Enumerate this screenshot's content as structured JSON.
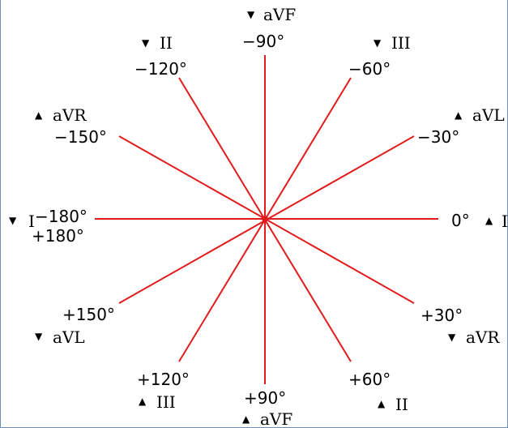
{
  "colors": {
    "axis_line": "#e11b1b",
    "center_dot": "#e11b1b",
    "text": "#000000",
    "frame": "#6f8fb6"
  },
  "angles": {
    "deg_0": "0°",
    "deg_neg30": "−30°",
    "deg_neg60": "−60°",
    "deg_neg90": "−90°",
    "deg_neg120": "−120°",
    "deg_neg150": "−150°",
    "deg_neg180": "−180°",
    "deg_pos180": "+180°",
    "deg_pos150": "+150°",
    "deg_pos120": "+120°",
    "deg_pos90": "+90°",
    "deg_pos60": "+60°",
    "deg_pos30": "+30°"
  },
  "leads": {
    "top": "aVF",
    "upper_left": "II",
    "upper_right": "III",
    "left_upper": "aVR",
    "right_upper": "aVL",
    "left": "I",
    "right": "I",
    "left_lower": "aVL",
    "right_lower": "aVR",
    "lower_left": "III",
    "lower_right": "II",
    "bottom": "aVF"
  },
  "markers": {
    "down": "▼",
    "up": "▲"
  }
}
